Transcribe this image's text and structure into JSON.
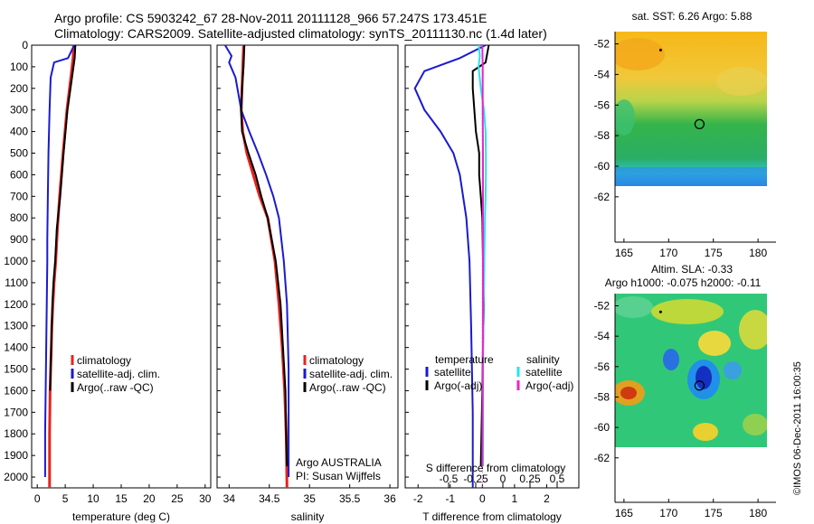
{
  "titles": {
    "line1": "Argo profile: CS 5903242_67 28-Nov-2011 20111128_966 57.247S 173.451E",
    "line2": "Climatology: CARS2009. Satellite-adjusted climatology: synTS_20111130.nc (1.4d later)"
  },
  "credit": "©IMOS 06-Dec-2011 16:00:35",
  "colors": {
    "climatology": "#e8231c",
    "satellite": "#1a1ad0",
    "argo": "#000000",
    "satellite_salinity": "#22e6ee",
    "argo_salinity": "#ee22cc"
  },
  "chart_data": [
    {
      "type": "line",
      "name": "temperature-profile",
      "xlabel": "temperature (deg C)",
      "ylabel": "",
      "xlim": [
        -1,
        31
      ],
      "ylim": [
        2050,
        0
      ],
      "xticks": [
        "0",
        "5",
        "10",
        "15",
        "20",
        "25",
        "30"
      ],
      "yticks": [
        "0",
        "100",
        "200",
        "300",
        "400",
        "500",
        "600",
        "700",
        "800",
        "900",
        "1000",
        "1100",
        "1200",
        "1300",
        "1400",
        "1500",
        "1600",
        "1700",
        "1800",
        "1900",
        "2000"
      ],
      "legend": [
        "climatology",
        "satellite-adj. clim.",
        "Argo(..raw -QC)"
      ],
      "series": [
        {
          "name": "climatology",
          "x": [
            6.5,
            6.4,
            6.0,
            5.3,
            4.6,
            4.0,
            3.6,
            3.3,
            3.0,
            2.8,
            2.6,
            2.5,
            2.4,
            2.3,
            2.2,
            2.2
          ],
          "y": [
            0,
            60,
            150,
            300,
            500,
            700,
            850,
            1000,
            1100,
            1200,
            1300,
            1400,
            1500,
            1600,
            1800,
            2050
          ]
        },
        {
          "name": "satellite-adj. clim.",
          "x": [
            6.6,
            5.5,
            3.0,
            2.4,
            2.2,
            2.0,
            1.9,
            1.8,
            1.8,
            1.7,
            1.6,
            1.5,
            1.4,
            1.4
          ],
          "y": [
            0,
            60,
            80,
            150,
            300,
            500,
            700,
            900,
            1000,
            1200,
            1400,
            1600,
            1800,
            2000
          ]
        },
        {
          "name": "Argo(..raw -QC)",
          "x": [
            6.8,
            6.7,
            6.2,
            5.4,
            4.7,
            4.1,
            3.5,
            3.2,
            2.9,
            2.7,
            2.6,
            2.5,
            2.4,
            2.3
          ],
          "y": [
            0,
            60,
            150,
            300,
            500,
            700,
            850,
            1000,
            1100,
            1200,
            1300,
            1400,
            1500,
            1600
          ]
        }
      ]
    },
    {
      "type": "line",
      "name": "salinity-profile",
      "xlabel": "salinity",
      "xlim": [
        33.85,
        36.1
      ],
      "ylim": [
        2050,
        0
      ],
      "xticks": [
        "34",
        "34.5",
        "35",
        "35.5",
        "36"
      ],
      "legend": [
        "climatology",
        "satellite-adj. clim.",
        "Argo(..raw -QC)"
      ],
      "annotation": [
        "Argo AUSTRALIA",
        "PI: Susan Wijffels"
      ],
      "series": [
        {
          "name": "climatology",
          "x": [
            34.18,
            34.17,
            34.16,
            34.15,
            34.17,
            34.22,
            34.3,
            34.38,
            34.48,
            34.57,
            34.62,
            34.66,
            34.69,
            34.71,
            34.72
          ],
          "y": [
            0,
            100,
            200,
            300,
            400,
            500,
            600,
            700,
            800,
            1000,
            1200,
            1400,
            1600,
            1800,
            2050
          ]
        },
        {
          "name": "satellite-adj. clim.",
          "x": [
            33.95,
            34.03,
            34.0,
            34.08,
            34.15,
            34.25,
            34.36,
            34.46,
            34.55,
            34.62,
            34.68,
            34.72,
            34.74,
            34.74,
            34.74
          ],
          "y": [
            0,
            50,
            80,
            150,
            300,
            400,
            500,
            600,
            700,
            800,
            1000,
            1200,
            1500,
            1800,
            2000
          ]
        },
        {
          "name": "Argo(..raw -QC)",
          "x": [
            34.19,
            34.18,
            34.16,
            34.15,
            34.16,
            34.24,
            34.33,
            34.4,
            34.48,
            34.58,
            34.64,
            34.67,
            34.7,
            34.71,
            34.72
          ],
          "y": [
            0,
            100,
            200,
            300,
            400,
            500,
            600,
            700,
            800,
            1000,
            1200,
            1400,
            1600,
            1800,
            1950
          ]
        }
      ]
    },
    {
      "type": "line",
      "name": "difference-profile",
      "xlabel": "T difference from climatology",
      "x2label": "S difference from climatology",
      "xlim": [
        -2.4,
        3.0
      ],
      "ylim": [
        2050,
        0
      ],
      "xticks": [
        "-2",
        "-1",
        "0",
        "1",
        "2"
      ],
      "x2ticks": [
        "-0.5",
        "-0.25",
        "0",
        "0.25",
        "0.5"
      ],
      "legend_groups": [
        {
          "title": "temperature",
          "items": [
            "satellite",
            "Argo(-adj)"
          ]
        },
        {
          "title": "salinity",
          "items": [
            "satellite",
            "Argo(-adj)"
          ]
        }
      ],
      "series": [
        {
          "name": "temperature satellite",
          "x": [
            0.1,
            -0.7,
            -1.8,
            -2.1,
            -1.8,
            -1.3,
            -0.9,
            -0.7,
            -0.5,
            -0.4,
            -0.35,
            -0.3,
            -0.3
          ],
          "y": [
            0,
            60,
            120,
            200,
            300,
            400,
            500,
            600,
            800,
            1000,
            1300,
            1700,
            2050
          ]
        },
        {
          "name": "temperature Argo(-adj)",
          "x": [
            0.2,
            0.1,
            -0.3,
            -0.3,
            -0.2,
            -0.1,
            -0.1,
            -0.05,
            0.0,
            0.02,
            0.05,
            0.02,
            0.0,
            -0.05
          ],
          "y": [
            0,
            80,
            120,
            200,
            400,
            500,
            600,
            700,
            800,
            1000,
            1200,
            1400,
            1600,
            1950
          ]
        },
        {
          "name": "salinity satellite",
          "x": [
            -0.11,
            -0.08,
            -0.12,
            -0.05,
            0.05,
            0.1,
            0.11,
            0.11,
            0.1,
            0.08,
            0.06,
            0.04,
            0.02,
            0.02
          ],
          "y": [
            0,
            50,
            100,
            200,
            300,
            400,
            500,
            600,
            700,
            800,
            1000,
            1200,
            1500,
            1950
          ]
        },
        {
          "name": "salinity Argo(-adj)",
          "x": [
            0.0,
            0.01,
            0.01,
            0.02,
            0.02,
            0.02,
            0.01,
            0.0
          ],
          "y": [
            0,
            100,
            300,
            500,
            800,
            1200,
            1600,
            1950
          ]
        }
      ]
    },
    {
      "type": "heatmap",
      "name": "sst-map",
      "title": "sat. SST: 6.26 Argo: 5.88",
      "xticks": [
        "165",
        "170",
        "175",
        "180"
      ],
      "yticks": [
        "-52",
        "-54",
        "-56",
        "-58",
        "-60",
        "-62"
      ],
      "xlim": [
        164,
        182
      ],
      "ylim": [
        -63.5,
        -51.5
      ],
      "argo_position": {
        "lon": 173.451,
        "lat": -57.247
      }
    },
    {
      "type": "heatmap",
      "name": "sla-map",
      "title": "Altim. SLA: -0.33",
      "subtitle": "Argo h1000: -0.075 h2000: -0.11",
      "xticks": [
        "165",
        "170",
        "175",
        "180"
      ],
      "yticks": [
        "-52",
        "-54",
        "-56",
        "-58",
        "-60",
        "-62"
      ],
      "xlim": [
        164,
        182
      ],
      "ylim": [
        -63.5,
        -51.5
      ],
      "argo_position": {
        "lon": 173.451,
        "lat": -57.247
      }
    }
  ]
}
